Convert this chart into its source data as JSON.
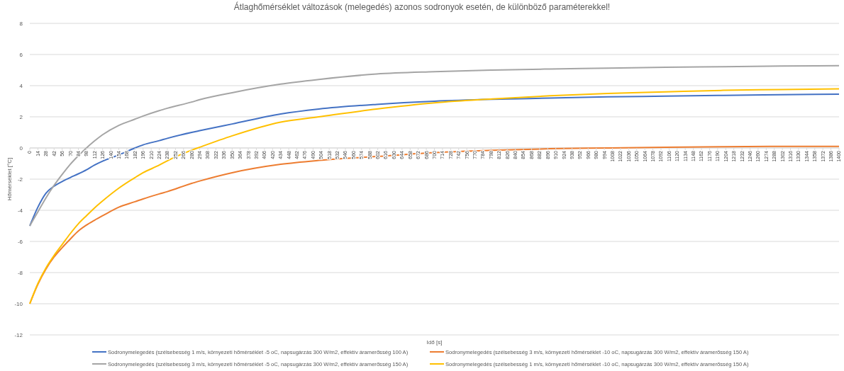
{
  "chart_data": {
    "type": "line",
    "title": "Átlaghőmérséklet változások (melegedés) azonos sodronyok esetén, de különböző paraméterekkel!",
    "xlabel": "Idő [s]",
    "ylabel": "Hőmérséklet [°C]",
    "x": [
      0,
      14,
      28,
      42,
      56,
      70,
      84,
      98,
      112,
      126,
      154,
      182,
      196,
      224,
      238,
      280,
      294,
      350,
      434,
      500,
      600,
      700,
      800,
      900,
      1000,
      1100,
      1200,
      1300,
      1400
    ],
    "series": [
      {
        "name": "Sodronymelegedés (szélsebesség 1 m/s, környezeti hőmérséklet -5 oC, napsugárzás 300 W/m2, effektív áramerősség 100 A)",
        "color": "#4472c4",
        "values": [
          -5,
          -3.8,
          -2.9,
          -2.45,
          -2.15,
          -1.9,
          -1.66,
          -1.4,
          -1.1,
          -0.85,
          -0.45,
          0,
          0.2,
          0.47,
          0.62,
          1.0,
          1.11,
          1.54,
          2.18,
          2.5,
          2.8,
          3.0,
          3.12,
          3.2,
          3.28,
          3.33,
          3.38,
          3.42,
          3.45
        ]
      },
      {
        "name": "Sodronymelegedés (szélsebesség 3 m/s, környezeti hőmérséklet -10 oC, napsugárzás 300 W/m2, effektív áramerősség 150 A)",
        "color": "#ed7d31",
        "values": [
          -10,
          -8.75,
          -7.77,
          -7.0,
          -6.4,
          -5.85,
          -5.33,
          -4.95,
          -4.64,
          -4.35,
          -3.8,
          -3.45,
          -3.27,
          -2.95,
          -2.8,
          -2.27,
          -2.12,
          -1.59,
          -1.05,
          -0.8,
          -0.55,
          -0.3,
          -0.15,
          -0.05,
          0,
          0.05,
          0.08,
          0.1,
          0.1
        ]
      },
      {
        "name": "Sodronymelegedés (szélsebesség 3 m/s, környezeti hőmérséklet -5 oC, napsugárzás 300 W/m2, effektív áramerősség 150 A)",
        "color": "#a5a5a5",
        "values": [
          -5,
          -4.1,
          -3.2,
          -2.4,
          -1.7,
          -1.05,
          -0.5,
          0,
          0.45,
          0.85,
          1.45,
          1.85,
          2.05,
          2.4,
          2.55,
          2.95,
          3.1,
          3.55,
          4.1,
          4.4,
          4.75,
          4.9,
          5.0,
          5.07,
          5.12,
          5.18,
          5.22,
          5.26,
          5.28
        ]
      },
      {
        "name": "Sodronymelegedés (szélsebesség 1 m/s, környezeti hőmérséklet -10 oC, napsugárzás 300 W/m2, effektív áramerősség 150 A)",
        "color": "#ffc000",
        "values": [
          -10,
          -8.7,
          -7.7,
          -6.9,
          -6.2,
          -5.5,
          -4.87,
          -4.35,
          -3.85,
          -3.4,
          -2.58,
          -1.9,
          -1.59,
          -1.1,
          -0.82,
          -0.14,
          0.05,
          0.78,
          1.66,
          2.0,
          2.5,
          2.9,
          3.15,
          3.35,
          3.5,
          3.6,
          3.7,
          3.75,
          3.8
        ]
      }
    ],
    "xlim": [
      0,
      1400
    ],
    "xticks": [
      0,
      14,
      28,
      42,
      56,
      70,
      84,
      98,
      112,
      126,
      140,
      154,
      168,
      182,
      196,
      210,
      224,
      238,
      252,
      266,
      280,
      294,
      308,
      322,
      336,
      350,
      364,
      378,
      392,
      406,
      420,
      434,
      448,
      462,
      476,
      490,
      504,
      518,
      532,
      546,
      560,
      574,
      588,
      602,
      616,
      630,
      644,
      658,
      672,
      686,
      700,
      714,
      728,
      742,
      756,
      770,
      784,
      798,
      812,
      826,
      840,
      854,
      868,
      882,
      896,
      910,
      924,
      938,
      952,
      966,
      980,
      994,
      1008,
      1022,
      1036,
      1050,
      1064,
      1078,
      1092,
      1106,
      1120,
      1134,
      1148,
      1162,
      1176,
      1190,
      1204,
      1218,
      1232,
      1246,
      1260,
      1274,
      1288,
      1302,
      1316,
      1330,
      1344,
      1358,
      1372,
      1386,
      1400
    ],
    "ylim": [
      -12,
      8
    ],
    "yticks": [
      -12,
      -10,
      -8,
      -6,
      -4,
      -2,
      0,
      2,
      4,
      6,
      8
    ],
    "grid": "y",
    "legend": "bottom",
    "line_style": "solid",
    "marker": "none"
  }
}
